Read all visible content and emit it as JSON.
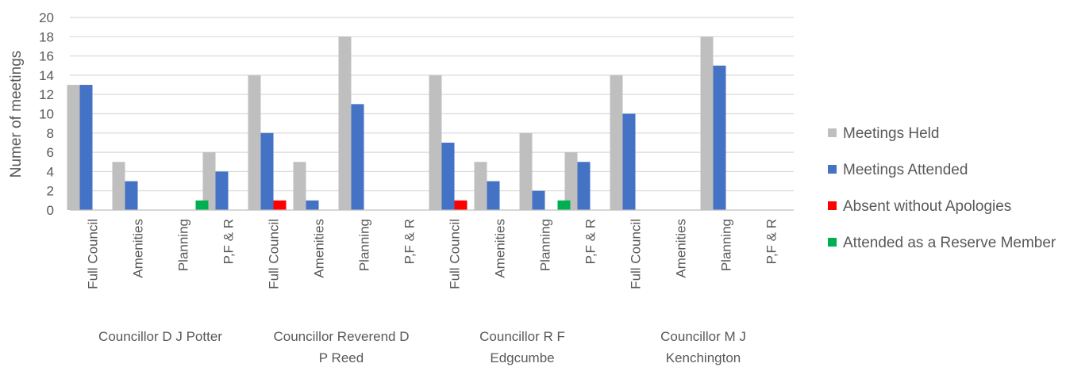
{
  "chart_data": {
    "type": "bar",
    "title": "",
    "xlabel": "",
    "ylabel": "Numer of meetings",
    "ylim": [
      0,
      20
    ],
    "yticks": [
      0,
      2,
      4,
      6,
      8,
      10,
      12,
      14,
      16,
      18,
      20
    ],
    "grid": true,
    "legend_position": "right",
    "groups": [
      {
        "label_lines": [
          "Councillor D J Potter"
        ],
        "categories": [
          "Full Council",
          "Amenities",
          "Planning",
          "P,F & R"
        ]
      },
      {
        "label_lines": [
          "Councillor Reverend D",
          "P Reed"
        ],
        "categories": [
          "Full Council",
          "Amenities",
          "Planning",
          "P,F & R"
        ]
      },
      {
        "label_lines": [
          "Councillor R F",
          "Edgcumbe"
        ],
        "categories": [
          "Full Council",
          "Amenities",
          "Planning",
          "P,F & R"
        ]
      },
      {
        "label_lines": [
          "Councillor M J",
          "Kenchington"
        ],
        "categories": [
          "Full Council",
          "Amenities",
          "Planning",
          "P,F & R"
        ]
      }
    ],
    "series": [
      {
        "name": "Meetings Held",
        "color": "#bfbfbf",
        "values": [
          13,
          5,
          0,
          6,
          14,
          5,
          18,
          0,
          14,
          5,
          8,
          6,
          14,
          0,
          18,
          0
        ]
      },
      {
        "name": "Meetings Attended",
        "color": "#4472c4",
        "values": [
          13,
          3,
          0,
          4,
          8,
          1,
          11,
          0,
          7,
          3,
          2,
          5,
          10,
          0,
          15,
          0
        ]
      },
      {
        "name": "Absent without Apologies",
        "color": "#ff0000",
        "values": [
          0,
          0,
          0,
          0,
          1,
          0,
          0,
          0,
          1,
          0,
          0,
          0,
          0,
          0,
          0,
          0
        ]
      },
      {
        "name": "Attended as a Reserve Member",
        "color": "#00b050",
        "values": [
          0,
          0,
          1,
          0,
          0,
          0,
          0,
          0,
          0,
          0,
          1,
          0,
          0,
          0,
          0,
          0
        ]
      }
    ]
  }
}
